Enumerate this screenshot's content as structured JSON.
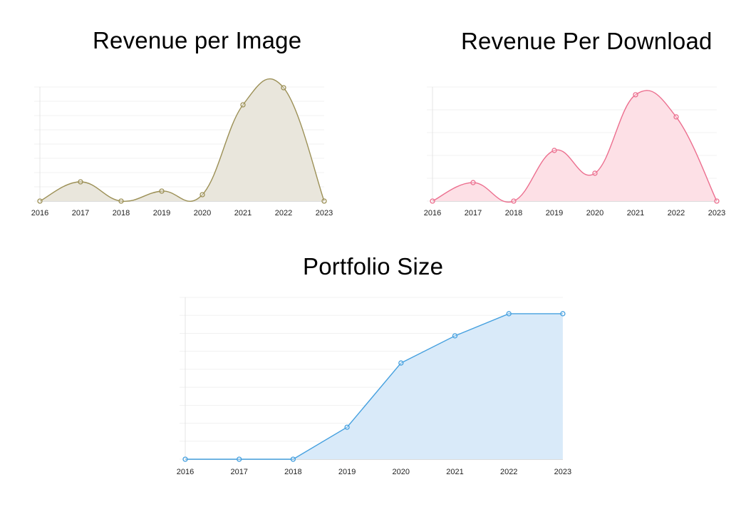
{
  "chart_data": [
    {
      "id": "revenue-per-image",
      "type": "area",
      "title": "Revenue per Image",
      "categories": [
        "2016",
        "2017",
        "2018",
        "2019",
        "2020",
        "2021",
        "2022",
        "2023"
      ],
      "values": [
        0,
        1.35,
        0,
        0.7,
        0.45,
        6.75,
        7.95,
        0
      ],
      "ylim": [
        0,
        8
      ],
      "grid": true,
      "gridlines": 8,
      "curve": "smooth",
      "line_color": "#9c9056",
      "fill_color": "#e9e6dc",
      "xlabel": "",
      "ylabel": "",
      "y_tick_labels": "hidden",
      "legend": "none"
    },
    {
      "id": "revenue-per-download",
      "type": "area",
      "title": "Revenue Per Download",
      "categories": [
        "2016",
        "2017",
        "2018",
        "2019",
        "2020",
        "2021",
        "2022",
        "2023"
      ],
      "values": [
        0,
        0.81,
        0,
        2.22,
        1.22,
        4.66,
        3.69,
        0
      ],
      "ylim": [
        0,
        5
      ],
      "grid": true,
      "gridlines": 5,
      "curve": "smooth",
      "line_color": "#ec6f8f",
      "fill_color": "#fde0e6",
      "xlabel": "",
      "ylabel": "",
      "y_tick_labels": "hidden",
      "legend": "none"
    },
    {
      "id": "portfolio-size",
      "type": "area",
      "title": "Portfolio Size",
      "categories": [
        "2016",
        "2017",
        "2018",
        "2019",
        "2020",
        "2021",
        "2022",
        "2023"
      ],
      "values": [
        0,
        0,
        0,
        1.78,
        5.35,
        6.86,
        8.09,
        8.09
      ],
      "ylim": [
        0,
        9
      ],
      "grid": true,
      "gridlines": 9,
      "curve": "linear",
      "line_color": "#45a0df",
      "fill_color": "#d9eaf9",
      "xlabel": "",
      "ylabel": "",
      "y_tick_labels": "hidden",
      "legend": "none"
    }
  ],
  "titles": {
    "chart1": "Revenue per Image",
    "chart2": "Revenue Per Download",
    "chart3": "Portfolio Size"
  }
}
